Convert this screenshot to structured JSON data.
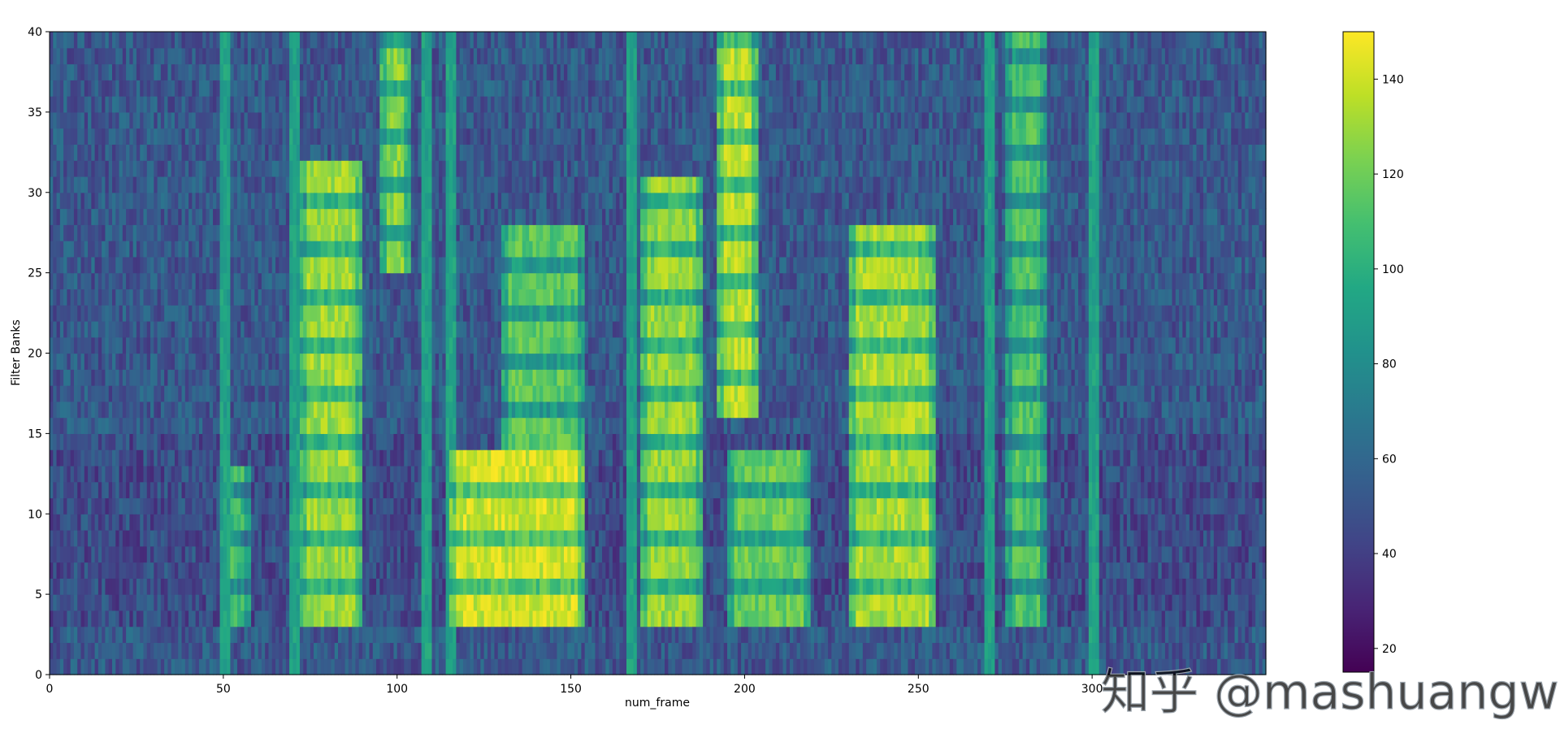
{
  "chart_data": {
    "type": "heatmap",
    "title": "",
    "xlabel": "num_frame",
    "ylabel": "Filter Banks",
    "xlim": [
      0,
      350
    ],
    "ylim": [
      0,
      40
    ],
    "x_ticks": [
      0,
      50,
      100,
      150,
      200,
      250,
      300
    ],
    "y_ticks": [
      0,
      5,
      10,
      15,
      20,
      25,
      30,
      35,
      40
    ],
    "colormap": "viridis",
    "colorbar": {
      "vmin": 15,
      "vmax": 150,
      "ticks": [
        20,
        40,
        60,
        80,
        100,
        120,
        140
      ],
      "placement": "right"
    },
    "n_frames": 350,
    "n_banks": 40,
    "background_level": 52,
    "energy_segments": [
      {
        "start": 50,
        "end": 57,
        "bank_lo": 3,
        "bank_hi": 12,
        "level": 108
      },
      {
        "start": 72,
        "end": 89,
        "bank_lo": 3,
        "bank_hi": 31,
        "level": 130
      },
      {
        "start": 95,
        "end": 103,
        "bank_lo": 25,
        "bank_hi": 40,
        "level": 125
      },
      {
        "start": 115,
        "end": 153,
        "bank_lo": 3,
        "bank_hi": 13,
        "level": 140
      },
      {
        "start": 130,
        "end": 153,
        "bank_lo": 14,
        "bank_hi": 27,
        "level": 115
      },
      {
        "start": 170,
        "end": 187,
        "bank_lo": 3,
        "bank_hi": 30,
        "level": 128
      },
      {
        "start": 192,
        "end": 203,
        "bank_lo": 16,
        "bank_hi": 40,
        "level": 135
      },
      {
        "start": 195,
        "end": 218,
        "bank_lo": 3,
        "bank_hi": 13,
        "level": 118
      },
      {
        "start": 230,
        "end": 254,
        "bank_lo": 3,
        "bank_hi": 27,
        "level": 132
      },
      {
        "start": 275,
        "end": 286,
        "bank_lo": 3,
        "bank_hi": 40,
        "level": 112
      }
    ],
    "onsets": [
      50,
      70,
      108,
      115,
      167,
      270,
      300
    ]
  },
  "watermark": "知乎 @mashuangwe"
}
